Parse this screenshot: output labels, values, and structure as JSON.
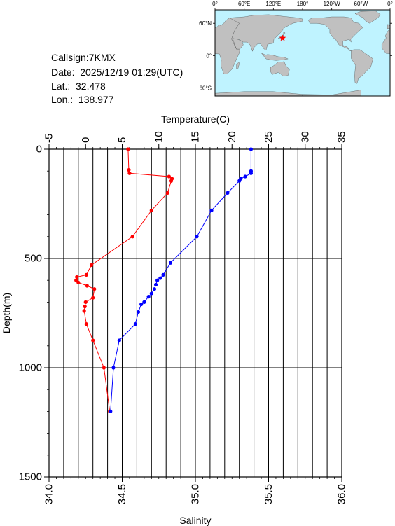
{
  "info": {
    "callsign": "Callsign:7KMX",
    "date": "Date:  2025/12/19 01:29(UTC)",
    "lat": "Lat.:  32.478",
    "lon": "Lon.:  138.977"
  },
  "map": {
    "lon_labels": [
      "0°",
      "60°E",
      "120°E",
      "180°",
      "120°W",
      "60°W",
      "0°"
    ],
    "lat_labels": [
      "60°N",
      "0°",
      "60°S"
    ],
    "ocean_color": "#bff3ff",
    "land_color": "#c0c0c0",
    "marker": {
      "lat": 32.478,
      "lon": 138.977,
      "color": "#ff0000"
    }
  },
  "chart_data": {
    "type": "line",
    "top_axis_label": "Temperature(C)",
    "bottom_axis_label": "Salinity",
    "ylabel": "Depth(m)",
    "temperature_ticks": [
      "-5",
      "0",
      "5",
      "10",
      "15",
      "20",
      "25",
      "30",
      "35"
    ],
    "salinity_ticks": [
      "34.0",
      "34.5",
      "35.0",
      "35.5",
      "36.0"
    ],
    "depth_ticks": [
      "0",
      "500",
      "1000",
      "1500"
    ],
    "temperature_range": [
      -5,
      35
    ],
    "salinity_range": [
      34.0,
      36.0
    ],
    "depth_range": [
      0,
      1500
    ],
    "grid": true,
    "series": [
      {
        "quantity": "temperature",
        "color": "#ff0000",
        "points": [
          {
            "depth": 0,
            "value": 5.8
          },
          {
            "depth": 95,
            "value": 5.9
          },
          {
            "depth": 110,
            "value": 6.0
          },
          {
            "depth": 125,
            "value": 11.4
          },
          {
            "depth": 135,
            "value": 11.8
          },
          {
            "depth": 145,
            "value": 11.7
          },
          {
            "depth": 200,
            "value": 11.2
          },
          {
            "depth": 280,
            "value": 9.0
          },
          {
            "depth": 400,
            "value": 6.4
          },
          {
            "depth": 530,
            "value": 0.8
          },
          {
            "depth": 575,
            "value": 0.1
          },
          {
            "depth": 585,
            "value": -1.2
          },
          {
            "depth": 600,
            "value": -1.3
          },
          {
            "depth": 610,
            "value": -1.0
          },
          {
            "depth": 625,
            "value": 0.2
          },
          {
            "depth": 640,
            "value": 1.2
          },
          {
            "depth": 680,
            "value": 1.0
          },
          {
            "depth": 700,
            "value": 0.0
          },
          {
            "depth": 720,
            "value": -0.1
          },
          {
            "depth": 740,
            "value": -0.2
          },
          {
            "depth": 800,
            "value": 0.1
          },
          {
            "depth": 875,
            "value": 1.0
          },
          {
            "depth": 1000,
            "value": 2.5
          },
          {
            "depth": 1200,
            "value": 3.3
          }
        ]
      },
      {
        "quantity": "salinity",
        "color": "#0000ff",
        "points": [
          {
            "depth": 0,
            "value": 35.38
          },
          {
            "depth": 100,
            "value": 35.38
          },
          {
            "depth": 110,
            "value": 35.38
          },
          {
            "depth": 125,
            "value": 35.34
          },
          {
            "depth": 135,
            "value": 35.31
          },
          {
            "depth": 145,
            "value": 35.3
          },
          {
            "depth": 200,
            "value": 35.22
          },
          {
            "depth": 280,
            "value": 35.11
          },
          {
            "depth": 400,
            "value": 35.01
          },
          {
            "depth": 520,
            "value": 34.83
          },
          {
            "depth": 575,
            "value": 34.78
          },
          {
            "depth": 590,
            "value": 34.76
          },
          {
            "depth": 600,
            "value": 34.74
          },
          {
            "depth": 620,
            "value": 34.73
          },
          {
            "depth": 640,
            "value": 34.72
          },
          {
            "depth": 660,
            "value": 34.7
          },
          {
            "depth": 675,
            "value": 34.68
          },
          {
            "depth": 700,
            "value": 34.65
          },
          {
            "depth": 710,
            "value": 34.63
          },
          {
            "depth": 745,
            "value": 34.61
          },
          {
            "depth": 800,
            "value": 34.59
          },
          {
            "depth": 875,
            "value": 34.48
          },
          {
            "depth": 1000,
            "value": 34.44
          },
          {
            "depth": 1200,
            "value": 34.42
          }
        ]
      }
    ]
  }
}
